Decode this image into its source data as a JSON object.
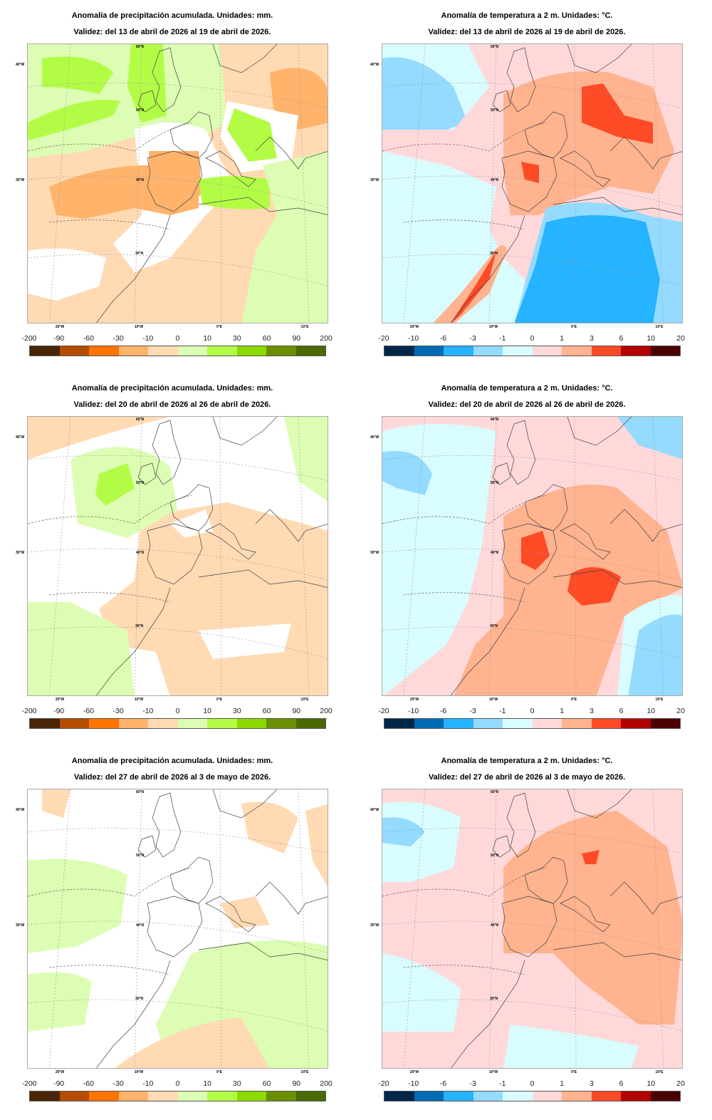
{
  "panels": [
    {
      "title": "Anomalía de precipitación acumulada. Unidades: mm.",
      "validity": "Validez: del 13 de abril de 2026 al 19 de abril de 2026.",
      "kind": "precip"
    },
    {
      "title": "Anomalía de temperatura a 2 m. Unidades: °C.",
      "validity": "Validez: del 13 de abril de 2026 al 19 de abril de 2026.",
      "kind": "temp"
    },
    {
      "title": "Anomalía de precipitación acumulada. Unidades: mm.",
      "validity": "Validez: del 20 de abril de 2026 al 26 de abril de 2026.",
      "kind": "precip"
    },
    {
      "title": "Anomalía de temperatura a 2 m. Unidades: °C.",
      "validity": "Validez: del 20 de abril de 2026 al 26 de abril de 2026.",
      "kind": "temp"
    },
    {
      "title": "Anomalía de precipitación acumulada. Unidades: mm.",
      "validity": "Validez: del 27 de abril de 2026 al 3 de mayo de 2026.",
      "kind": "precip"
    },
    {
      "title": "Anomalía de temperatura a 2 m. Unidades: °C.",
      "validity": "Validez: del 27 de abril de 2026 al 3 de mayo de 2026.",
      "kind": "temp"
    }
  ],
  "axes": {
    "lon_labels": [
      "20°W",
      "10°W",
      "0°E",
      "10°E"
    ],
    "left_labels": [
      "40°W",
      "30°W"
    ],
    "lat_labels": [
      "60°N",
      "50°N",
      "40°N",
      "30°N"
    ]
  },
  "colorbars": {
    "precip": {
      "labels": [
        "-200",
        "-90",
        "-60",
        "-30",
        "-10",
        "0",
        "10",
        "30",
        "60",
        "90",
        "200"
      ],
      "colors": [
        "#4a2606",
        "#b54d00",
        "#ff7300",
        "#ffb36b",
        "#ffdab3",
        "#dcfdb3",
        "#b3fc46",
        "#8cd900",
        "#6b8f00",
        "#486a00"
      ]
    },
    "temp": {
      "labels": [
        "-20",
        "-10",
        "-6",
        "-3",
        "-1",
        "0",
        "1",
        "3",
        "6",
        "10",
        "20"
      ],
      "colors": [
        "#00264a",
        "#006bb3",
        "#26b3ff",
        "#94dbff",
        "#d9fcff",
        "#ffd9d9",
        "#ffb38f",
        "#ff4a26",
        "#b30000",
        "#4a0000"
      ]
    }
  }
}
